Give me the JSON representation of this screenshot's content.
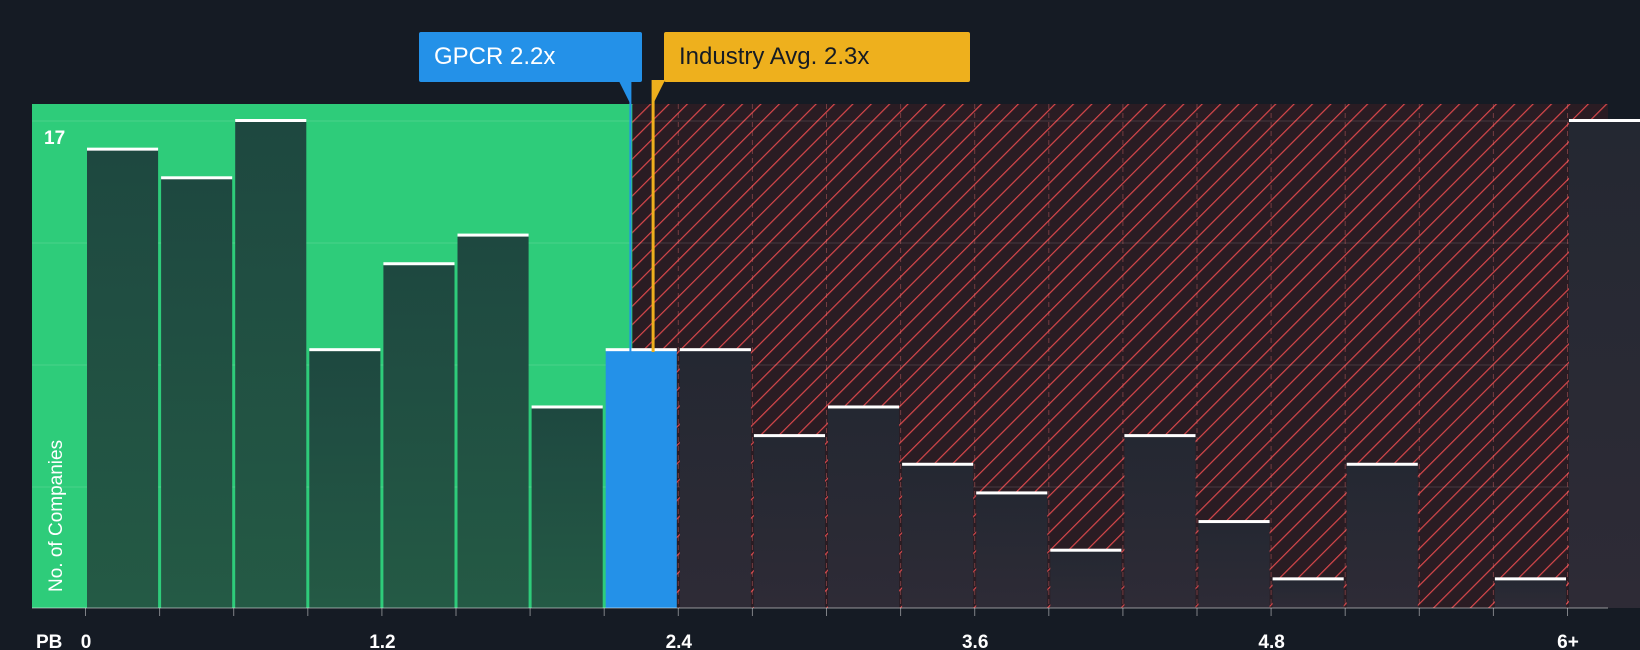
{
  "chart_data": {
    "type": "bar",
    "title": "",
    "xlabel": "PB",
    "ylabel": "No. of Companies",
    "ymax_label": "17",
    "ylim": [
      0,
      17
    ],
    "x_tick_labels": [
      "0",
      "1.2",
      "2.4",
      "3.6",
      "4.8",
      "6+"
    ],
    "bins": [
      {
        "x": 0.0,
        "value": 16
      },
      {
        "x": 0.3,
        "value": 15
      },
      {
        "x": 0.6,
        "value": 17
      },
      {
        "x": 0.9,
        "value": 9
      },
      {
        "x": 1.2,
        "value": 12
      },
      {
        "x": 1.5,
        "value": 13
      },
      {
        "x": 1.8,
        "value": 7
      },
      {
        "x": 2.1,
        "value": 9,
        "highlight": true
      },
      {
        "x": 2.4,
        "value": 9
      },
      {
        "x": 2.7,
        "value": 6
      },
      {
        "x": 3.0,
        "value": 7
      },
      {
        "x": 3.3,
        "value": 5
      },
      {
        "x": 3.6,
        "value": 4
      },
      {
        "x": 3.9,
        "value": 2
      },
      {
        "x": 4.2,
        "value": 6
      },
      {
        "x": 4.5,
        "value": 3
      },
      {
        "x": 4.8,
        "value": 1
      },
      {
        "x": 5.1,
        "value": 5
      },
      {
        "x": 5.4,
        "value": 0
      },
      {
        "x": 5.7,
        "value": 1
      },
      {
        "x": 6.0,
        "value": 17
      }
    ],
    "company": {
      "label": "GPCR 2.2x",
      "value": 2.2
    },
    "industry_avg": {
      "label": "Industry Avg. 2.3x",
      "value": 2.3
    },
    "colors": {
      "background": "#151b24",
      "fair_zone": "#2ecc7a",
      "bar_fair": "#1f4a3f",
      "bar_highlight": "#2491e8",
      "bar_over": "#272a34",
      "hatch": "#e04a4a",
      "company": "#2491e8",
      "industry": "#eeb01d",
      "cap": "#ffffff",
      "text": "#ffffff"
    }
  }
}
